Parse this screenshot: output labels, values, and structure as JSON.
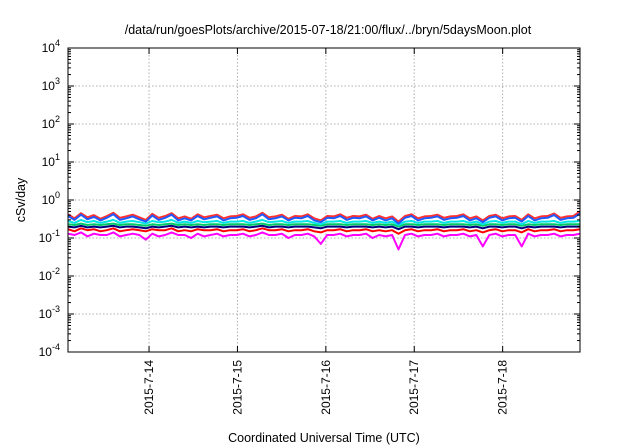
{
  "chart_data": {
    "type": "line",
    "title": "/data/run/goesPlots/archive/2015-07-18/21:00/flux/../bryn/5daysMoon.plot",
    "xlabel": "Coordinated Universal Time (UTC)",
    "ylabel": "cSv/day",
    "y_scale": "log",
    "ylim": [
      0.0001,
      10000
    ],
    "y_ticks": [
      {
        "value": 0.0001,
        "base": "10",
        "exp": "-4"
      },
      {
        "value": 0.001,
        "base": "10",
        "exp": "-3"
      },
      {
        "value": 0.01,
        "base": "10",
        "exp": "-2"
      },
      {
        "value": 0.1,
        "base": "10",
        "exp": "-1"
      },
      {
        "value": 1,
        "base": "10",
        "exp": "0"
      },
      {
        "value": 10,
        "base": "10",
        "exp": "1"
      },
      {
        "value": 100,
        "base": "10",
        "exp": "2"
      },
      {
        "value": 1000,
        "base": "10",
        "exp": "3"
      },
      {
        "value": 10000,
        "base": "10",
        "exp": "4"
      }
    ],
    "xlim": [
      "2015-07-13 02:00",
      "2015-07-18 21:00"
    ],
    "x_ticks": [
      "2015-7-14",
      "2015-7-15",
      "2015-7-16",
      "2015-7-17",
      "2015-7-18"
    ],
    "x_tick_dates": [
      "2015-07-14",
      "2015-07-15",
      "2015-07-16",
      "2015-07-17",
      "2015-07-18"
    ],
    "grid": true,
    "series": [
      {
        "color": "#ff00ff",
        "values": [
          0.13,
          0.12,
          0.14,
          0.11,
          0.13,
          0.12,
          0.12,
          0.14,
          0.11,
          0.12,
          0.13,
          0.12,
          0.09,
          0.13,
          0.11,
          0.12,
          0.14,
          0.12,
          0.12,
          0.1,
          0.13,
          0.11,
          0.12,
          0.13,
          0.11,
          0.12,
          0.12,
          0.13,
          0.11,
          0.12,
          0.14,
          0.12,
          0.12,
          0.13,
          0.1,
          0.12,
          0.12,
          0.13,
          0.11,
          0.07,
          0.12,
          0.12,
          0.13,
          0.11,
          0.12,
          0.12,
          0.13,
          0.1,
          0.12,
          0.11,
          0.12,
          0.05,
          0.12,
          0.13,
          0.11,
          0.12,
          0.12,
          0.13,
          0.11,
          0.12,
          0.12,
          0.13,
          0.11,
          0.12,
          0.06,
          0.12,
          0.13,
          0.11,
          0.12,
          0.12,
          0.06,
          0.13,
          0.11,
          0.12,
          0.12,
          0.13,
          0.11,
          0.12,
          0.12,
          0.13
        ]
      },
      {
        "color": "#ff0000",
        "values": [
          0.17,
          0.15,
          0.18,
          0.16,
          0.17,
          0.15,
          0.16,
          0.18,
          0.15,
          0.16,
          0.17,
          0.16,
          0.15,
          0.17,
          0.16,
          0.16,
          0.18,
          0.15,
          0.16,
          0.15,
          0.17,
          0.16,
          0.16,
          0.17,
          0.15,
          0.16,
          0.16,
          0.17,
          0.15,
          0.16,
          0.18,
          0.16,
          0.16,
          0.17,
          0.15,
          0.16,
          0.16,
          0.17,
          0.15,
          0.14,
          0.16,
          0.16,
          0.17,
          0.15,
          0.16,
          0.16,
          0.17,
          0.15,
          0.16,
          0.15,
          0.16,
          0.13,
          0.16,
          0.17,
          0.15,
          0.16,
          0.16,
          0.17,
          0.15,
          0.16,
          0.16,
          0.17,
          0.15,
          0.16,
          0.14,
          0.16,
          0.17,
          0.15,
          0.16,
          0.16,
          0.14,
          0.17,
          0.15,
          0.16,
          0.16,
          0.17,
          0.15,
          0.16,
          0.16,
          0.17
        ]
      },
      {
        "color": "#000080",
        "values": [
          0.2,
          0.19,
          0.21,
          0.19,
          0.2,
          0.19,
          0.2,
          0.21,
          0.19,
          0.2,
          0.2,
          0.19,
          0.18,
          0.2,
          0.19,
          0.2,
          0.21,
          0.19,
          0.2,
          0.19,
          0.2,
          0.19,
          0.2,
          0.2,
          0.19,
          0.2,
          0.2,
          0.2,
          0.19,
          0.2,
          0.21,
          0.19,
          0.2,
          0.2,
          0.19,
          0.2,
          0.2,
          0.2,
          0.19,
          0.18,
          0.2,
          0.2,
          0.2,
          0.19,
          0.2,
          0.2,
          0.2,
          0.19,
          0.2,
          0.19,
          0.2,
          0.17,
          0.2,
          0.2,
          0.19,
          0.2,
          0.2,
          0.2,
          0.19,
          0.2,
          0.2,
          0.2,
          0.19,
          0.2,
          0.18,
          0.2,
          0.2,
          0.19,
          0.2,
          0.2,
          0.18,
          0.2,
          0.19,
          0.2,
          0.2,
          0.2,
          0.19,
          0.2,
          0.2,
          0.2
        ]
      },
      {
        "color": "#00cc66",
        "values": [
          0.23,
          0.22,
          0.24,
          0.22,
          0.23,
          0.22,
          0.23,
          0.24,
          0.22,
          0.23,
          0.23,
          0.22,
          0.21,
          0.23,
          0.22,
          0.23,
          0.24,
          0.22,
          0.23,
          0.22,
          0.23,
          0.22,
          0.23,
          0.23,
          0.22,
          0.23,
          0.23,
          0.23,
          0.22,
          0.23,
          0.24,
          0.22,
          0.23,
          0.23,
          0.22,
          0.23,
          0.23,
          0.23,
          0.22,
          0.21,
          0.23,
          0.23,
          0.23,
          0.22,
          0.23,
          0.23,
          0.23,
          0.22,
          0.23,
          0.22,
          0.23,
          0.2,
          0.23,
          0.23,
          0.22,
          0.23,
          0.23,
          0.23,
          0.22,
          0.23,
          0.23,
          0.23,
          0.22,
          0.23,
          0.21,
          0.23,
          0.23,
          0.22,
          0.23,
          0.23,
          0.21,
          0.23,
          0.22,
          0.23,
          0.23,
          0.23,
          0.22,
          0.23,
          0.23,
          0.23
        ]
      },
      {
        "color": "#00e5e5",
        "values": [
          0.28,
          0.25,
          0.3,
          0.26,
          0.28,
          0.25,
          0.27,
          0.3,
          0.25,
          0.27,
          0.28,
          0.26,
          0.24,
          0.28,
          0.26,
          0.27,
          0.3,
          0.25,
          0.27,
          0.25,
          0.28,
          0.26,
          0.27,
          0.28,
          0.25,
          0.27,
          0.27,
          0.28,
          0.25,
          0.27,
          0.3,
          0.26,
          0.27,
          0.28,
          0.25,
          0.27,
          0.27,
          0.28,
          0.25,
          0.23,
          0.27,
          0.27,
          0.28,
          0.25,
          0.27,
          0.27,
          0.28,
          0.25,
          0.27,
          0.25,
          0.27,
          0.22,
          0.27,
          0.28,
          0.25,
          0.27,
          0.27,
          0.28,
          0.25,
          0.27,
          0.27,
          0.28,
          0.25,
          0.27,
          0.23,
          0.27,
          0.28,
          0.25,
          0.27,
          0.27,
          0.23,
          0.28,
          0.25,
          0.27,
          0.27,
          0.28,
          0.25,
          0.27,
          0.27,
          0.28
        ]
      },
      {
        "color": "#ff3030",
        "values": [
          0.42,
          0.33,
          0.45,
          0.35,
          0.4,
          0.32,
          0.38,
          0.46,
          0.34,
          0.37,
          0.41,
          0.35,
          0.3,
          0.43,
          0.34,
          0.38,
          0.45,
          0.33,
          0.37,
          0.32,
          0.42,
          0.35,
          0.38,
          0.41,
          0.33,
          0.37,
          0.38,
          0.42,
          0.34,
          0.37,
          0.46,
          0.35,
          0.37,
          0.41,
          0.32,
          0.38,
          0.37,
          0.42,
          0.33,
          0.29,
          0.38,
          0.37,
          0.42,
          0.34,
          0.38,
          0.37,
          0.41,
          0.32,
          0.38,
          0.33,
          0.37,
          0.27,
          0.38,
          0.42,
          0.33,
          0.37,
          0.38,
          0.41,
          0.34,
          0.37,
          0.38,
          0.42,
          0.33,
          0.37,
          0.29,
          0.38,
          0.41,
          0.33,
          0.37,
          0.38,
          0.3,
          0.42,
          0.33,
          0.37,
          0.38,
          0.44,
          0.34,
          0.37,
          0.38,
          0.5
        ]
      },
      {
        "color": "#1e5aff",
        "values": [
          0.38,
          0.3,
          0.41,
          0.31,
          0.36,
          0.29,
          0.34,
          0.42,
          0.3,
          0.33,
          0.37,
          0.31,
          0.27,
          0.39,
          0.3,
          0.34,
          0.41,
          0.29,
          0.33,
          0.29,
          0.38,
          0.31,
          0.34,
          0.37,
          0.29,
          0.33,
          0.34,
          0.38,
          0.3,
          0.33,
          0.42,
          0.31,
          0.33,
          0.37,
          0.29,
          0.34,
          0.33,
          0.38,
          0.29,
          0.26,
          0.34,
          0.33,
          0.38,
          0.3,
          0.34,
          0.33,
          0.37,
          0.29,
          0.34,
          0.29,
          0.33,
          0.24,
          0.34,
          0.38,
          0.29,
          0.33,
          0.34,
          0.37,
          0.3,
          0.33,
          0.34,
          0.38,
          0.29,
          0.33,
          0.26,
          0.34,
          0.37,
          0.29,
          0.33,
          0.34,
          0.27,
          0.38,
          0.29,
          0.33,
          0.34,
          0.4,
          0.3,
          0.33,
          0.34,
          0.44
        ]
      }
    ]
  }
}
